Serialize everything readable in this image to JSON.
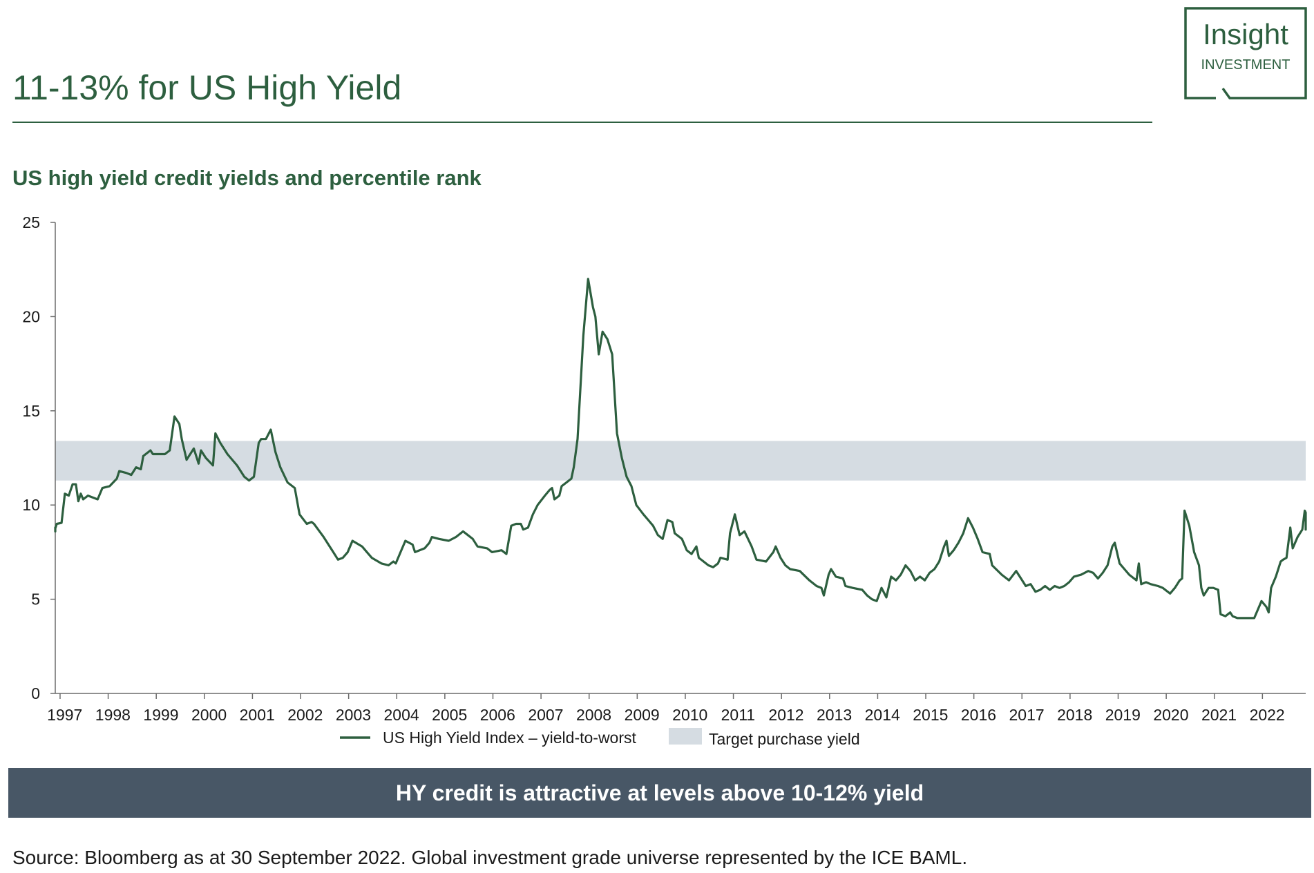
{
  "page": {
    "title": "11-13% for US High Yield",
    "subtitle": "US high yield credit yields and percentile rank",
    "banner": "HY credit is attractive at levels above 10-12% yield",
    "source": "Source: Bloomberg as at 30 September 2022. Global investment grade universe represented by the ICE BAML."
  },
  "logo": {
    "line1": "Insight",
    "line2": "INVESTMENT",
    "icon": "insight-logo-icon"
  },
  "colors": {
    "brand": "#2d5f3f",
    "line": "#2d5f3f",
    "band": "#d5dce2",
    "banner": "#485766"
  },
  "chart_data": {
    "type": "line",
    "title": "US high yield credit yields and percentile rank",
    "xlabel": "",
    "ylabel": "",
    "ylim": [
      0,
      25
    ],
    "yticks": [
      "0",
      "5",
      "10",
      "15",
      "20",
      "25"
    ],
    "categories": [
      "1997",
      "1998",
      "1999",
      "2000",
      "2001",
      "2002",
      "2003",
      "2004",
      "2005",
      "2006",
      "2007",
      "2008",
      "2009",
      "2010",
      "2011",
      "2012",
      "2013",
      "2014",
      "2015",
      "2016",
      "2017",
      "2018",
      "2019",
      "2020",
      "2021",
      "2022"
    ],
    "xlim": [
      1996.9,
      2022.9
    ],
    "band": {
      "name": "Target purchase yield",
      "low": 11.3,
      "high": 13.4
    },
    "legend": {
      "placement": "bottom"
    },
    "series": [
      {
        "name": "US High Yield Index – yield-to-worst",
        "points": [
          [
            1996.95,
            8.8
          ],
          [
            1997.1,
            8.7
          ],
          [
            1997.3,
            8.6
          ],
          [
            1997.45,
            8.75
          ],
          [
            1997.55,
            9.0
          ],
          [
            1997.65,
            9.05
          ],
          [
            1997.72,
            10.6
          ],
          [
            1997.8,
            10.5
          ],
          [
            1997.88,
            11.1
          ],
          [
            1997.95,
            11.1
          ],
          [
            1998.0,
            10.2
          ],
          [
            1998.05,
            10.6
          ],
          [
            1998.1,
            10.3
          ],
          [
            1998.2,
            10.5
          ],
          [
            1998.4,
            10.3
          ],
          [
            1998.5,
            10.9
          ],
          [
            1998.65,
            11.0
          ],
          [
            1998.8,
            11.4
          ],
          [
            1998.85,
            11.8
          ],
          [
            1999.0,
            11.7
          ],
          [
            1999.1,
            11.6
          ],
          [
            1999.2,
            12.0
          ],
          [
            1999.3,
            11.9
          ],
          [
            1999.35,
            12.6
          ],
          [
            1999.5,
            12.9
          ],
          [
            1999.55,
            12.7
          ],
          [
            1999.7,
            12.7
          ],
          [
            1999.8,
            12.7
          ],
          [
            1999.9,
            12.9
          ],
          [
            2000.0,
            14.7
          ],
          [
            2000.1,
            14.3
          ],
          [
            2000.15,
            13.5
          ],
          [
            2000.25,
            12.4
          ],
          [
            2000.4,
            13.0
          ],
          [
            2000.5,
            12.2
          ],
          [
            2000.55,
            12.9
          ],
          [
            2000.65,
            12.5
          ],
          [
            2000.8,
            12.1
          ],
          [
            2000.85,
            13.8
          ],
          [
            2000.95,
            13.3
          ],
          [
            2001.1,
            12.7
          ],
          [
            2001.3,
            12.1
          ],
          [
            2001.45,
            11.5
          ],
          [
            2001.55,
            11.3
          ],
          [
            2001.65,
            11.5
          ],
          [
            2001.75,
            13.3
          ],
          [
            2001.8,
            13.5
          ],
          [
            2001.9,
            13.5
          ],
          [
            2002.0,
            14.0
          ],
          [
            2002.1,
            12.8
          ],
          [
            2002.2,
            12.0
          ],
          [
            2002.35,
            11.2
          ],
          [
            2002.5,
            10.9
          ],
          [
            2002.6,
            9.5
          ],
          [
            2002.75,
            9.0
          ],
          [
            2002.85,
            9.1
          ],
          [
            2002.9,
            9.0
          ],
          [
            2003.1,
            8.3
          ],
          [
            2003.3,
            7.5
          ],
          [
            2003.4,
            7.1
          ],
          [
            2003.5,
            7.2
          ],
          [
            2003.6,
            7.5
          ],
          [
            2003.7,
            8.1
          ],
          [
            2003.9,
            7.8
          ],
          [
            2004.0,
            7.5
          ],
          [
            2004.1,
            7.2
          ],
          [
            2004.3,
            6.9
          ],
          [
            2004.45,
            6.8
          ],
          [
            2004.55,
            7.0
          ],
          [
            2004.6,
            6.9
          ],
          [
            2004.7,
            7.5
          ],
          [
            2004.8,
            8.1
          ],
          [
            2004.95,
            7.9
          ],
          [
            2005.0,
            7.5
          ],
          [
            2005.2,
            7.7
          ],
          [
            2005.3,
            8.0
          ],
          [
            2005.35,
            8.3
          ],
          [
            2005.5,
            8.2
          ],
          [
            2005.7,
            8.1
          ],
          [
            2005.85,
            8.3
          ],
          [
            2006.0,
            8.6
          ],
          [
            2006.1,
            8.4
          ],
          [
            2006.2,
            8.2
          ],
          [
            2006.3,
            7.8
          ],
          [
            2006.5,
            7.7
          ],
          [
            2006.6,
            7.5
          ],
          [
            2006.8,
            7.6
          ],
          [
            2006.9,
            7.4
          ],
          [
            2007.0,
            8.9
          ],
          [
            2007.1,
            9.0
          ],
          [
            2007.2,
            9.0
          ],
          [
            2007.25,
            8.7
          ],
          [
            2007.35,
            8.8
          ],
          [
            2007.45,
            9.5
          ],
          [
            2007.55,
            10.0
          ],
          [
            2007.7,
            10.5
          ],
          [
            2007.8,
            10.8
          ],
          [
            2007.85,
            10.9
          ],
          [
            2007.9,
            10.3
          ],
          [
            2008.0,
            10.5
          ],
          [
            2008.05,
            11.0
          ],
          [
            2008.15,
            11.2
          ],
          [
            2008.25,
            11.4
          ],
          [
            2008.3,
            12.0
          ],
          [
            2008.38,
            13.5
          ],
          [
            2008.5,
            19.0
          ],
          [
            2008.6,
            22.0
          ],
          [
            2008.7,
            20.5
          ],
          [
            2008.75,
            20.0
          ],
          [
            2008.82,
            18.0
          ],
          [
            2008.9,
            19.2
          ],
          [
            2009.0,
            18.8
          ],
          [
            2009.1,
            18.0
          ],
          [
            2009.2,
            13.8
          ],
          [
            2009.3,
            12.5
          ],
          [
            2009.4,
            11.5
          ],
          [
            2009.5,
            11.0
          ],
          [
            2009.6,
            10.0
          ],
          [
            2009.75,
            9.5
          ],
          [
            2009.85,
            9.2
          ],
          [
            2009.95,
            8.9
          ],
          [
            2010.05,
            8.4
          ],
          [
            2010.15,
            8.2
          ],
          [
            2010.25,
            9.2
          ],
          [
            2010.35,
            9.1
          ],
          [
            2010.4,
            8.5
          ],
          [
            2010.55,
            8.2
          ],
          [
            2010.65,
            7.6
          ],
          [
            2010.75,
            7.4
          ],
          [
            2010.85,
            7.8
          ],
          [
            2010.9,
            7.2
          ],
          [
            2011.0,
            7.0
          ],
          [
            2011.1,
            6.8
          ],
          [
            2011.2,
            6.7
          ],
          [
            2011.3,
            6.9
          ],
          [
            2011.35,
            7.2
          ],
          [
            2011.5,
            7.1
          ],
          [
            2011.55,
            8.5
          ],
          [
            2011.65,
            9.5
          ],
          [
            2011.75,
            8.4
          ],
          [
            2011.85,
            8.6
          ],
          [
            2012.0,
            7.8
          ],
          [
            2012.1,
            7.1
          ],
          [
            2012.3,
            7.0
          ],
          [
            2012.45,
            7.5
          ],
          [
            2012.5,
            7.8
          ],
          [
            2012.6,
            7.2
          ],
          [
            2012.7,
            6.8
          ],
          [
            2012.8,
            6.6
          ],
          [
            2013.0,
            6.5
          ],
          [
            2013.2,
            6.0
          ],
          [
            2013.35,
            5.7
          ],
          [
            2013.45,
            5.6
          ],
          [
            2013.5,
            5.2
          ],
          [
            2013.6,
            6.3
          ],
          [
            2013.65,
            6.6
          ],
          [
            2013.75,
            6.2
          ],
          [
            2013.9,
            6.1
          ],
          [
            2013.95,
            5.7
          ],
          [
            2014.1,
            5.6
          ],
          [
            2014.3,
            5.5
          ],
          [
            2014.4,
            5.2
          ],
          [
            2014.5,
            5.0
          ],
          [
            2014.6,
            4.9
          ],
          [
            2014.7,
            5.6
          ],
          [
            2014.8,
            5.1
          ],
          [
            2014.9,
            6.2
          ],
          [
            2015.0,
            6.0
          ],
          [
            2015.1,
            6.3
          ],
          [
            2015.2,
            6.8
          ],
          [
            2015.3,
            6.5
          ],
          [
            2015.4,
            6.0
          ],
          [
            2015.5,
            6.2
          ],
          [
            2015.6,
            6.0
          ],
          [
            2015.7,
            6.4
          ],
          [
            2015.8,
            6.6
          ],
          [
            2015.9,
            7.0
          ],
          [
            2016.0,
            7.8
          ],
          [
            2016.05,
            8.1
          ],
          [
            2016.1,
            7.3
          ],
          [
            2016.2,
            7.6
          ],
          [
            2016.3,
            8.0
          ],
          [
            2016.4,
            8.5
          ],
          [
            2016.5,
            9.3
          ],
          [
            2016.6,
            8.8
          ],
          [
            2016.7,
            8.2
          ],
          [
            2016.8,
            7.5
          ],
          [
            2016.95,
            7.4
          ],
          [
            2017.0,
            6.8
          ],
          [
            2017.2,
            6.3
          ],
          [
            2017.35,
            6.0
          ],
          [
            2017.5,
            6.5
          ],
          [
            2017.6,
            6.1
          ],
          [
            2017.7,
            5.7
          ],
          [
            2017.8,
            5.8
          ],
          [
            2017.9,
            5.4
          ],
          [
            2018.0,
            5.5
          ],
          [
            2018.1,
            5.7
          ],
          [
            2018.2,
            5.5
          ],
          [
            2018.3,
            5.7
          ],
          [
            2018.4,
            5.6
          ],
          [
            2018.5,
            5.7
          ],
          [
            2018.6,
            5.9
          ],
          [
            2018.7,
            6.2
          ],
          [
            2018.85,
            6.3
          ],
          [
            2019.0,
            6.5
          ],
          [
            2019.1,
            6.4
          ],
          [
            2019.2,
            6.1
          ],
          [
            2019.3,
            6.4
          ],
          [
            2019.4,
            6.8
          ],
          [
            2019.5,
            7.8
          ],
          [
            2019.55,
            8.0
          ],
          [
            2019.65,
            6.9
          ],
          [
            2019.75,
            6.6
          ],
          [
            2019.85,
            6.3
          ],
          [
            2020.0,
            6.0
          ],
          [
            2020.05,
            6.9
          ],
          [
            2020.1,
            5.8
          ],
          [
            2020.2,
            5.9
          ],
          [
            2020.3,
            5.8
          ],
          [
            2020.45,
            5.7
          ],
          [
            2020.55,
            5.6
          ],
          [
            2020.6,
            5.5
          ],
          [
            2020.7,
            5.3
          ],
          [
            2020.8,
            5.6
          ],
          [
            2020.9,
            6.0
          ],
          [
            2020.95,
            6.1
          ],
          [
            2021.0,
            9.7
          ],
          [
            2021.1,
            8.9
          ],
          [
            2021.2,
            7.5
          ],
          [
            2021.3,
            6.8
          ],
          [
            2021.35,
            5.6
          ],
          [
            2021.4,
            5.2
          ],
          [
            2021.5,
            5.6
          ],
          [
            2021.6,
            5.6
          ],
          [
            2021.7,
            5.5
          ],
          [
            2021.75,
            4.2
          ],
          [
            2021.85,
            4.1
          ],
          [
            2021.95,
            4.3
          ],
          [
            2022.0,
            4.1
          ],
          [
            2022.1,
            4.0
          ],
          [
            2022.3,
            4.0
          ],
          [
            2022.45,
            4.0
          ],
          [
            2022.55,
            4.6
          ],
          [
            2022.6,
            4.9
          ],
          [
            2022.7,
            4.6
          ],
          [
            2022.75,
            4.3
          ],
          [
            2022.8,
            5.6
          ],
          [
            2022.9,
            6.2
          ],
          [
            2023.0,
            7.0
          ],
          [
            2023.05,
            7.1
          ],
          [
            2023.12,
            7.2
          ],
          [
            2023.2,
            8.8
          ],
          [
            2023.25,
            7.7
          ],
          [
            2023.35,
            8.3
          ],
          [
            2023.45,
            8.7
          ],
          [
            2023.5,
            9.7
          ],
          [
            2023.55,
            9.6
          ],
          [
            2023.62,
            8.7
          ]
        ]
      }
    ]
  }
}
